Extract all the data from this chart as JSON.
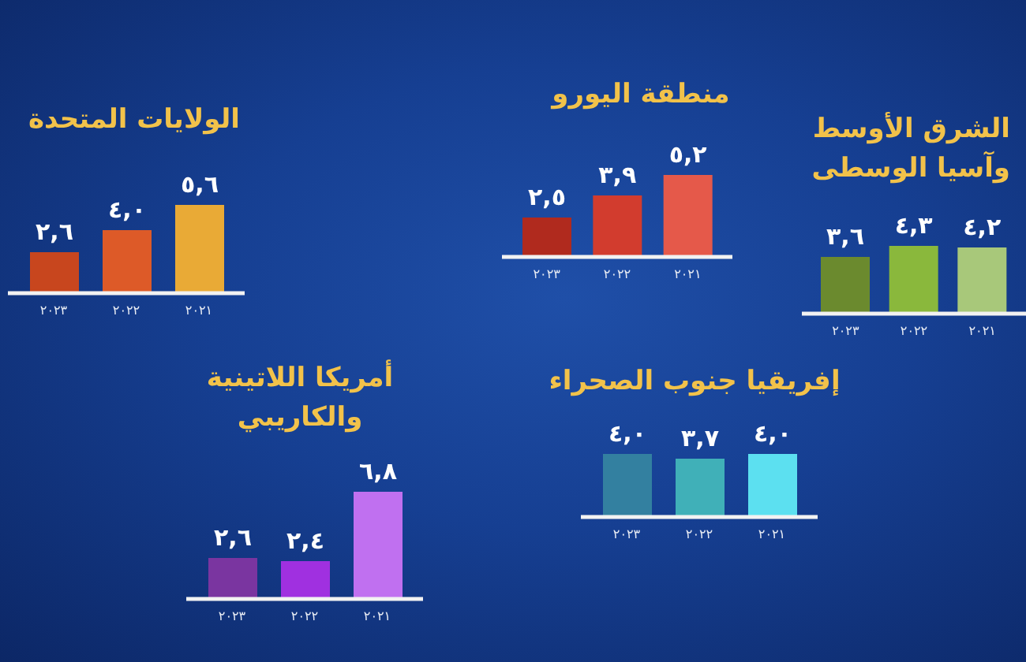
{
  "chart_data": [
    {
      "type": "bar",
      "title": "الولايات المتحدة",
      "categories": [
        "٢٠٢٣",
        "٢٠٢٢",
        "٢٠٢١"
      ],
      "values": [
        2.6,
        4.0,
        5.6
      ],
      "colors": [
        "#c8461e",
        "#dd5a28",
        "#e9aa36"
      ],
      "value_labels": [
        "٢,٦",
        "٤,٠",
        "٥,٦"
      ],
      "tick_labels": "x"
    },
    {
      "type": "bar",
      "title": "منطقة اليورو",
      "categories": [
        "٢٠٢٣",
        "٢٠٢٢",
        "٢٠٢١"
      ],
      "values": [
        2.5,
        3.9,
        5.2
      ],
      "colors": [
        "#b02a1e",
        "#d23c2e",
        "#e5594a"
      ],
      "value_labels": [
        "٢,٥",
        "٣,٩",
        "٥,٢"
      ],
      "tick_labels": "x"
    },
    {
      "type": "bar",
      "title": "الشرق الأوسط\nوآسيا الوسطى",
      "categories": [
        "٢٠٢٣",
        "٢٠٢٢",
        "٢٠٢١"
      ],
      "values": [
        3.6,
        4.3,
        4.2
      ],
      "colors": [
        "#6b8a2e",
        "#8ab83c",
        "#a8c87a"
      ],
      "value_labels": [
        "٣,٦",
        "٤,٣",
        "٤,٢"
      ],
      "tick_labels": "x"
    },
    {
      "type": "bar",
      "title": "أمريكا اللاتينية\nوالكاريبي",
      "categories": [
        "٢٠٢٣",
        "٢٠٢٢",
        "٢٠٢١"
      ],
      "values": [
        2.6,
        2.4,
        6.8
      ],
      "colors": [
        "#7a35a0",
        "#a030e0",
        "#c070f0"
      ],
      "value_labels": [
        "٢,٦",
        "٢,٤",
        "٦,٨"
      ],
      "tick_labels": "x"
    },
    {
      "type": "bar",
      "title": "إفريقيا جنوب الصحراء",
      "categories": [
        "٢٠٢٣",
        "٢٠٢٢",
        "٢٠٢١"
      ],
      "values": [
        4.0,
        3.7,
        4.0
      ],
      "colors": [
        "#3380a0",
        "#40b0b8",
        "#5ce0f0"
      ],
      "value_labels": [
        "٤,٠",
        "٣,٧",
        "٤,٠"
      ],
      "tick_labels": "x"
    }
  ]
}
